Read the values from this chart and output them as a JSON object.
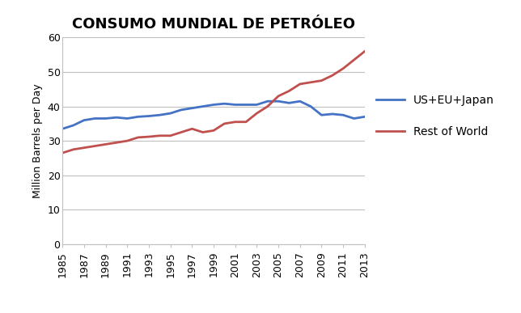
{
  "title": "CONSUMO MUNDIAL DE PETRÓLEO",
  "ylabel": "Million Barrels per Day",
  "years": [
    1985,
    1986,
    1987,
    1988,
    1989,
    1990,
    1991,
    1992,
    1993,
    1994,
    1995,
    1996,
    1997,
    1998,
    1999,
    2000,
    2001,
    2002,
    2003,
    2004,
    2005,
    2006,
    2007,
    2008,
    2009,
    2010,
    2011,
    2012,
    2013
  ],
  "us_eu_japan": [
    33.5,
    34.5,
    36.0,
    36.5,
    36.5,
    36.8,
    36.5,
    37.0,
    37.2,
    37.5,
    38.0,
    39.0,
    39.5,
    40.0,
    40.5,
    40.8,
    40.5,
    40.5,
    40.5,
    41.5,
    41.5,
    41.0,
    41.5,
    40.0,
    37.5,
    37.8,
    37.5,
    36.5,
    37.0
  ],
  "rest_of_world": [
    26.5,
    27.5,
    28.0,
    28.5,
    29.0,
    29.5,
    30.0,
    31.0,
    31.2,
    31.5,
    31.5,
    32.5,
    33.5,
    32.5,
    33.0,
    35.0,
    35.5,
    35.5,
    38.0,
    40.0,
    43.0,
    44.5,
    46.5,
    47.0,
    47.5,
    49.0,
    51.0,
    53.5,
    56.0
  ],
  "us_eu_japan_color": "#4472C4",
  "rest_of_world_color": "#C0504D",
  "ylim": [
    0,
    60
  ],
  "yticks": [
    0,
    10,
    20,
    30,
    40,
    50,
    60
  ],
  "xtick_labels": [
    "1985",
    "1987",
    "1989",
    "1991",
    "1993",
    "1995",
    "1997",
    "1999",
    "2001",
    "2003",
    "2005",
    "2007",
    "2009",
    "2011",
    "2013"
  ],
  "legend_us_eu_japan": "US+EU+Japan",
  "legend_rest_of_world": "Rest of World",
  "background_color": "#ffffff",
  "title_fontsize": 13,
  "axis_label_fontsize": 9,
  "tick_fontsize": 9,
  "grid_color": "#c0c0c0"
}
